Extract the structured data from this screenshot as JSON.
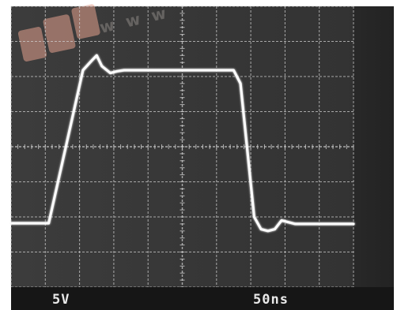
{
  "chart_data": {
    "type": "line",
    "title": "",
    "xlabel": "",
    "ylabel": "",
    "grid": true,
    "divisions": {
      "x": 10,
      "y": 8
    },
    "xlim": [
      0,
      10
    ],
    "ylim": [
      -4,
      4
    ],
    "vertical_scale": "5V",
    "time_scale": "50ns",
    "series": [
      {
        "x": [
          0,
          1.1,
          1.6,
          2.1,
          2.35,
          2.5,
          2.65,
          2.9,
          3.1,
          3.3,
          6.5,
          6.7,
          7.1,
          7.3,
          7.5,
          7.7,
          7.9,
          8.1,
          8.3,
          10
        ],
        "y": [
          -2.18,
          -2.18,
          0.0,
          2.18,
          2.45,
          2.6,
          2.3,
          2.1,
          2.15,
          2.18,
          2.18,
          1.8,
          -2.0,
          -2.35,
          -2.4,
          -2.35,
          -2.1,
          -2.15,
          -2.2,
          -2.2
        ]
      }
    ]
  },
  "watermark": {
    "text": "w w w",
    "logo_color": "#e3a08d"
  },
  "colors": {
    "screen": "#383838",
    "grid": "#cfcfcf",
    "trace": "#fbfbfb",
    "scale_bar": "#161616"
  }
}
